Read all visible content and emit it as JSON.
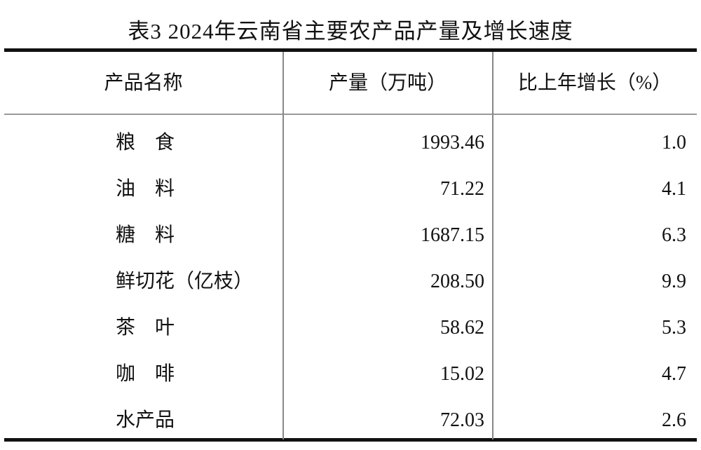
{
  "title": "表3 2024年云南省主要农产品产量及增长速度",
  "headers": [
    "产品名称",
    "产量（万吨）",
    "比上年增长（%）"
  ],
  "rows": [
    {
      "name": "粮　食",
      "output": "1993.46",
      "growth": "1.0"
    },
    {
      "name": "油　料",
      "output": "71.22",
      "growth": "4.1"
    },
    {
      "name": "糖　料",
      "output": "1687.15",
      "growth": "6.3"
    },
    {
      "name": "鲜切花（亿枝）",
      "output": "208.50",
      "growth": "9.9"
    },
    {
      "name": "茶　叶",
      "output": "58.62",
      "growth": "5.3"
    },
    {
      "name": "咖　啡",
      "output": "15.02",
      "growth": "4.7"
    },
    {
      "name": "水产品",
      "output": "72.03",
      "growth": "2.6"
    }
  ]
}
